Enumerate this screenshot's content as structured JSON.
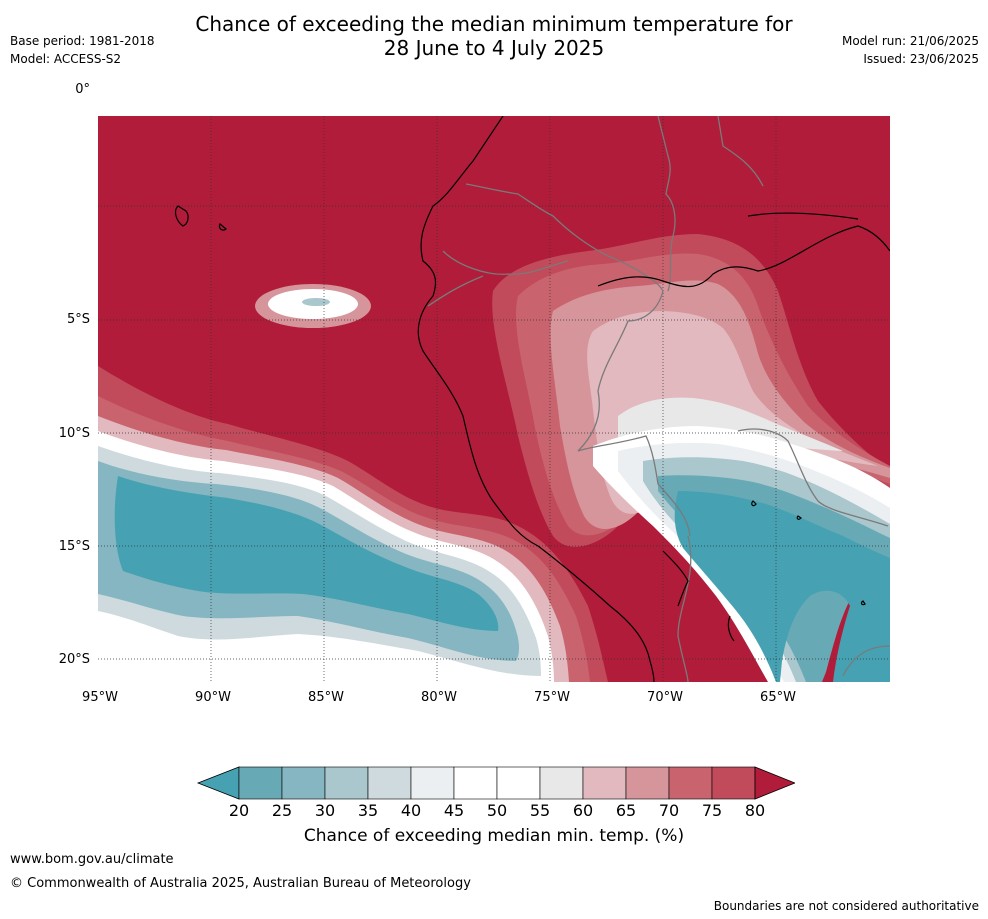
{
  "header": {
    "title_line1": "Chance of exceeding the median minimum temperature for",
    "title_line2": "28 June to 4 July 2025",
    "base_period": "Base period: 1981-2018",
    "model": "Model: ACCESS-S2",
    "model_run": "Model run: 21/06/2025",
    "issued": "Issued: 23/06/2025"
  },
  "map": {
    "lat_labels": [
      "0°",
      "5°S",
      "10°S",
      "15°S",
      "20°S"
    ],
    "lon_labels": [
      "95°W",
      "90°W",
      "85°W",
      "80°W",
      "75°W",
      "70°W",
      "65°W"
    ],
    "colors": {
      "c80": "#b01c39",
      "c75": "#c14a5b",
      "c70": "#c9646f",
      "c65": "#d6949b",
      "c60": "#e2b9be",
      "c55": "#e8e8e8",
      "c50": "#ffffff",
      "c45": "#ebeff1",
      "c40": "#cfdade",
      "c35": "#a9c7cd",
      "c30": "#86b6c1",
      "c25": "#68a9b6",
      "c20": "#46a2b2"
    }
  },
  "legend": {
    "ticks": [
      "20",
      "25",
      "30",
      "35",
      "40",
      "45",
      "50",
      "55",
      "60",
      "65",
      "70",
      "75",
      "80"
    ],
    "colors": [
      "#46a2b2",
      "#68a9b6",
      "#86b6c1",
      "#a9c7cd",
      "#cfdade",
      "#ebeff1",
      "#ffffff",
      "#ffffff",
      "#e8e8e8",
      "#e2b9be",
      "#d6949b",
      "#c9646f",
      "#c14a5b",
      "#b01c39"
    ],
    "title": "Chance of exceeding median min. temp. (%)"
  },
  "footer": {
    "url": "www.bom.gov.au/climate",
    "copyright": "© Commonwealth of Australia 2025, Australian Bureau of Meteorology",
    "disclaimer": "Boundaries are not considered authoritative"
  }
}
